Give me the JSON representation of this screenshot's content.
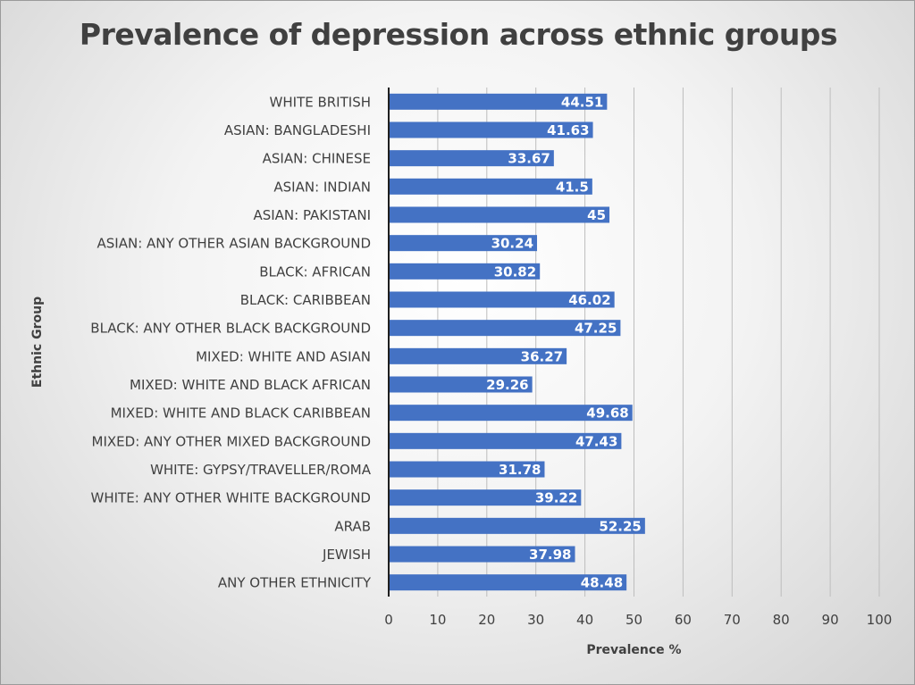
{
  "chart_data": {
    "type": "bar",
    "orientation": "horizontal",
    "title": "Prevalence of depression across ethnic groups",
    "xlabel": "Prevalence %",
    "ylabel": "Ethnic Group",
    "xlim": [
      0,
      100
    ],
    "xticks": [
      0,
      10,
      20,
      30,
      40,
      50,
      60,
      70,
      80,
      90,
      100
    ],
    "grid": "vertical",
    "bar_color": "#4472C4",
    "data_labels": true,
    "categories": [
      "WHITE BRITISH",
      "ASIAN: BANGLADESHI",
      "ASIAN: CHINESE",
      "ASIAN: INDIAN",
      "ASIAN: PAKISTANI",
      "ASIAN: ANY OTHER ASIAN BACKGROUND",
      "BLACK: AFRICAN",
      "BLACK: CARIBBEAN",
      "BLACK: ANY OTHER BLACK BACKGROUND",
      "MIXED: WHITE AND ASIAN",
      "MIXED: WHITE AND BLACK AFRICAN",
      "MIXED: WHITE AND BLACK CARIBBEAN",
      "MIXED: ANY OTHER MIXED BACKGROUND",
      "WHITE: GYPSY/TRAVELLER/ROMA",
      "WHITE: ANY OTHER WHITE BACKGROUND",
      "ARAB",
      "JEWISH",
      "ANY OTHER ETHNICITY"
    ],
    "values": [
      44.51,
      41.63,
      33.67,
      41.5,
      45,
      30.24,
      30.82,
      46.02,
      47.25,
      36.27,
      29.26,
      49.68,
      47.43,
      31.78,
      39.22,
      52.25,
      37.98,
      48.48
    ]
  }
}
